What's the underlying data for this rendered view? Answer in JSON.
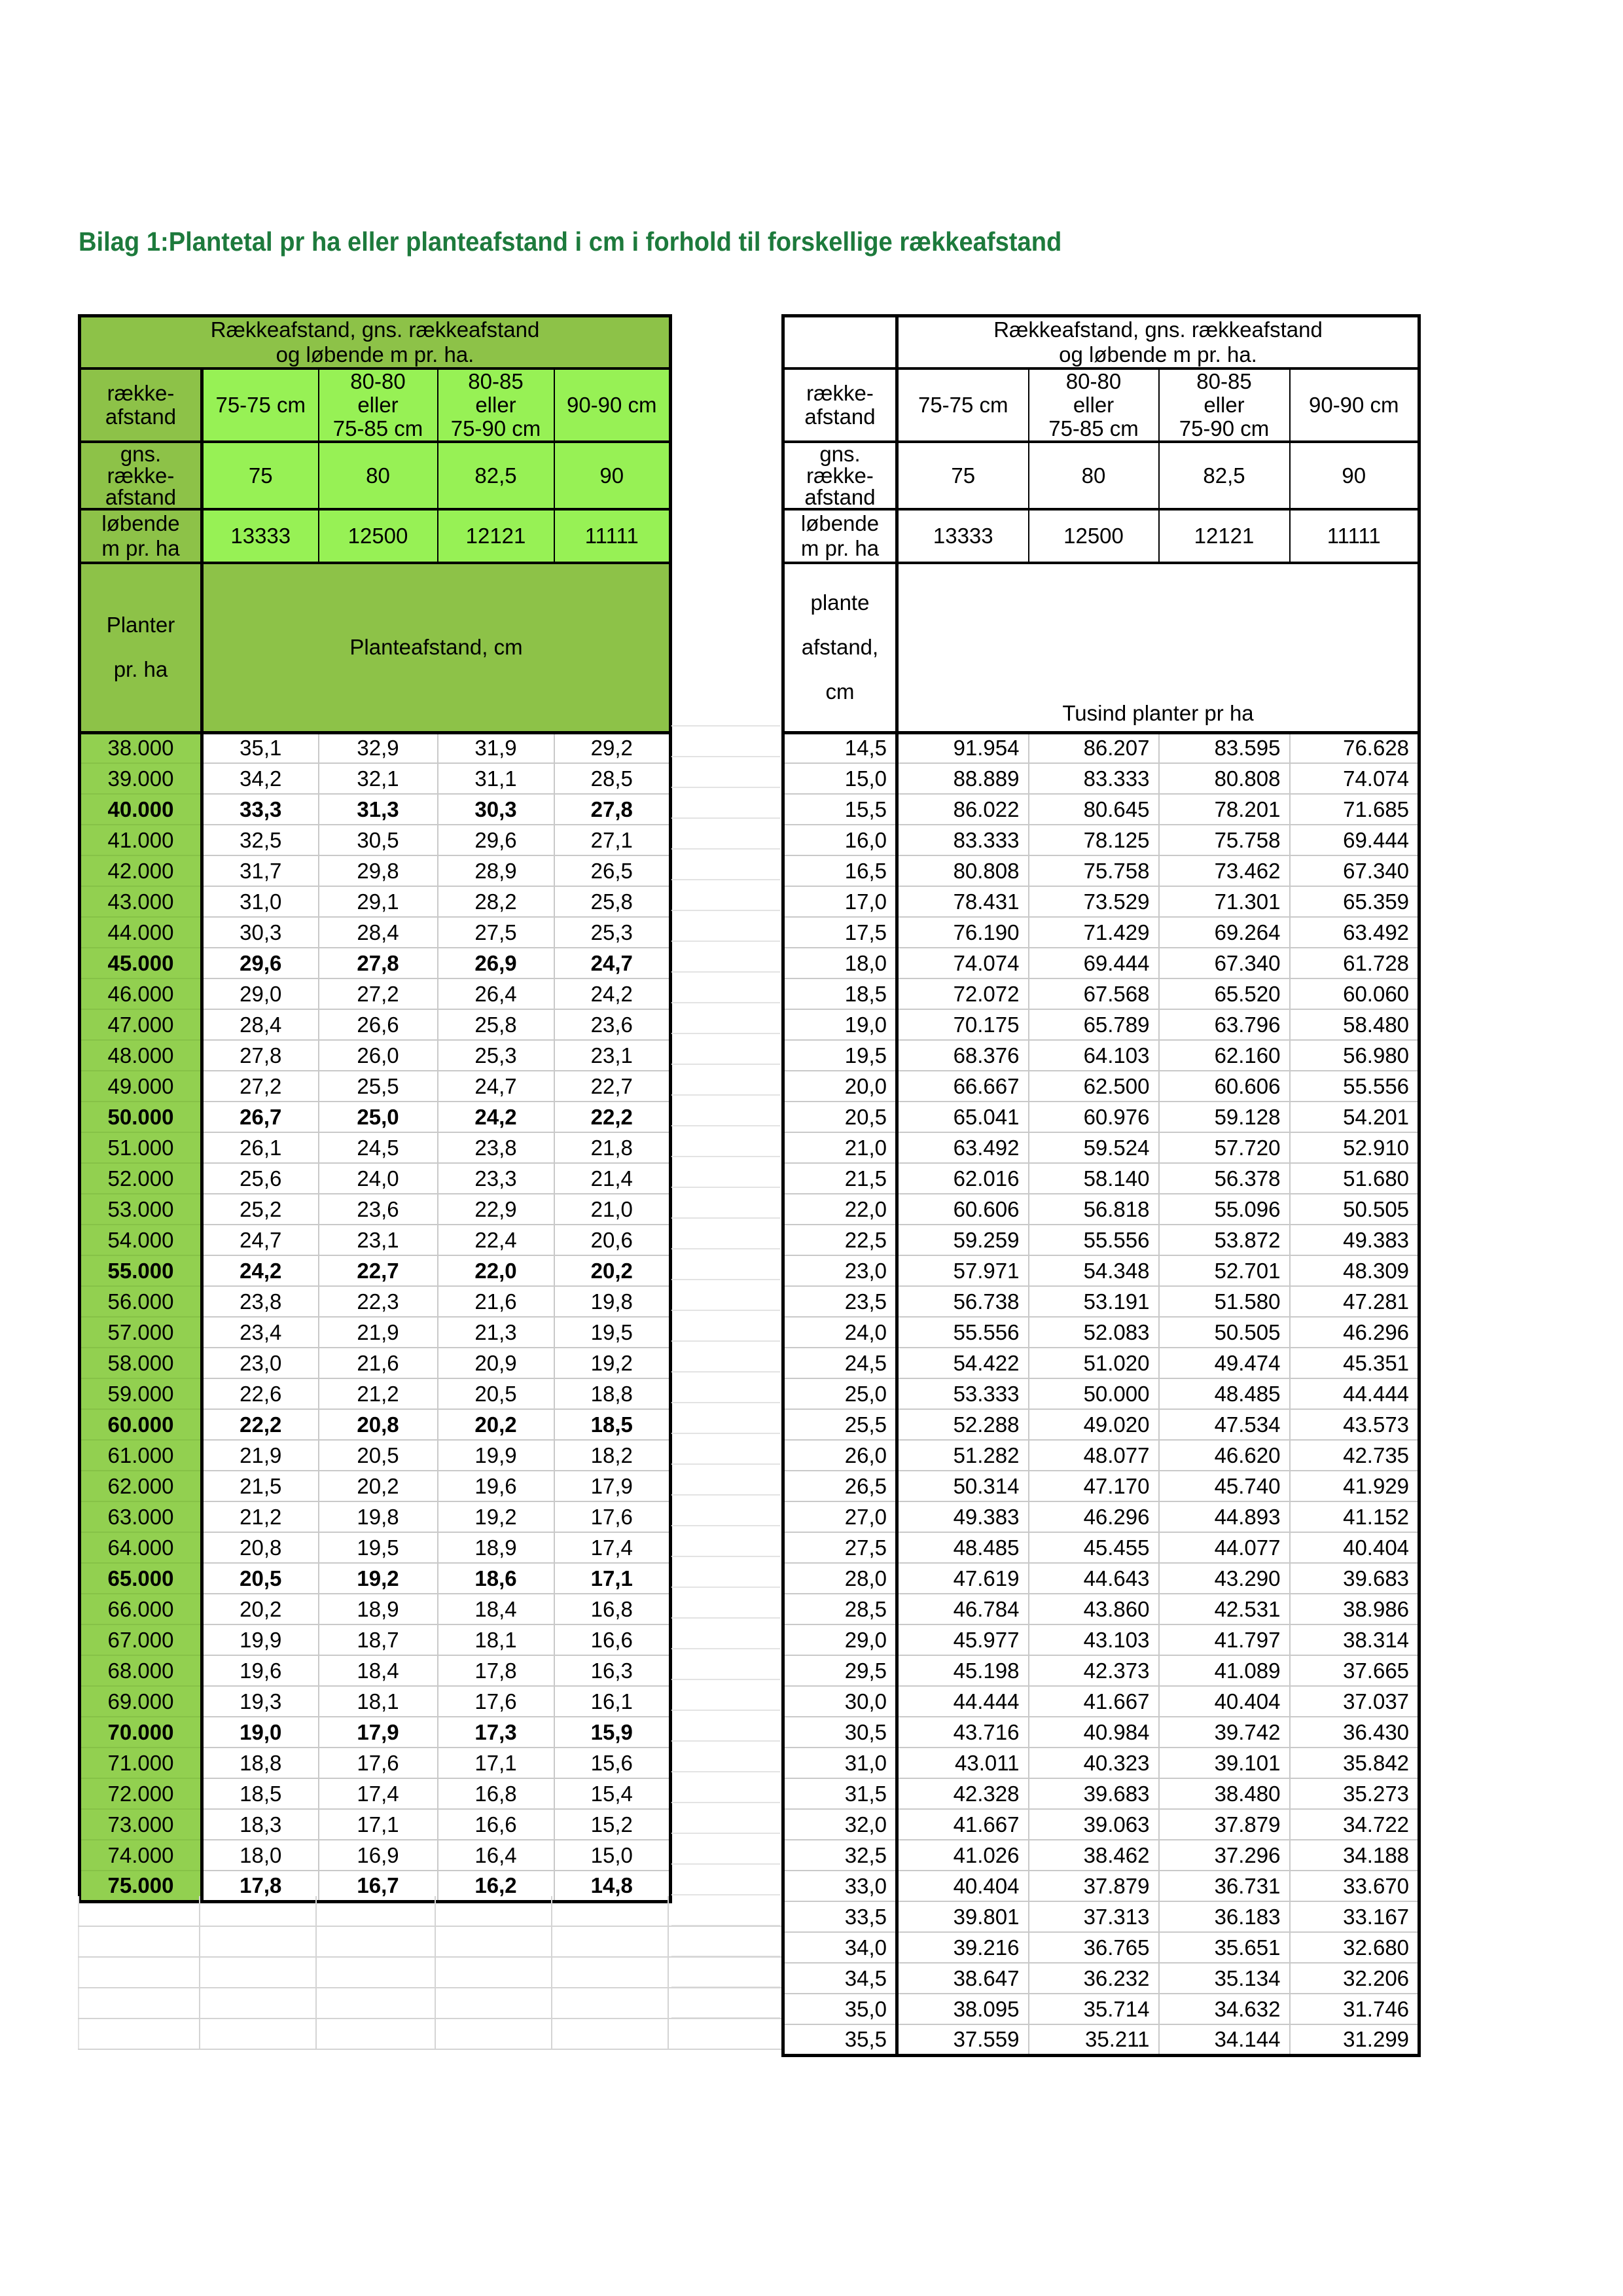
{
  "title": "Bilag 1:Plantetal pr ha eller planteafstand i cm i forhold til forskellige rækkeafstand",
  "colors": {
    "title_green": "#1d7a3c",
    "header_band_green": "#8dc248",
    "header_light_green": "#97f155",
    "first_column_green": "#92d050"
  },
  "shared_header": {
    "band_line1": "Rækkeafstand, gns. rækkeafstand",
    "band_line2": "og løbende m pr. ha.",
    "row_label_line1": "række-",
    "row_label_line2": "afstand",
    "col1": "75-75 cm",
    "col2_line1": "80-80",
    "col2_line2": "eller",
    "col2_line3": "75-85 cm",
    "col3_line1": "80-85",
    "col3_line2": "eller",
    "col3_line3": "75-90 cm",
    "col4": "90-90 cm",
    "gns_line1": "gns.",
    "gns_line2": "række-",
    "gns_line3": "afstand",
    "gns_values": [
      "75",
      "80",
      "82,5",
      "90"
    ],
    "lob_line1": "løbende",
    "lob_line2": "m pr. ha",
    "lob_values": [
      "13333",
      "12500",
      "12121",
      "11111"
    ]
  },
  "left_table": {
    "planter_line1": "Planter",
    "planter_line2": "pr. ha",
    "span_label": "Planteafstand, cm",
    "rows": [
      {
        "c0": "38.000",
        "v": [
          "35,1",
          "32,9",
          "31,9",
          "29,2"
        ],
        "bold": false
      },
      {
        "c0": "39.000",
        "v": [
          "34,2",
          "32,1",
          "31,1",
          "28,5"
        ],
        "bold": false
      },
      {
        "c0": "40.000",
        "v": [
          "33,3",
          "31,3",
          "30,3",
          "27,8"
        ],
        "bold": true
      },
      {
        "c0": "41.000",
        "v": [
          "32,5",
          "30,5",
          "29,6",
          "27,1"
        ],
        "bold": false
      },
      {
        "c0": "42.000",
        "v": [
          "31,7",
          "29,8",
          "28,9",
          "26,5"
        ],
        "bold": false
      },
      {
        "c0": "43.000",
        "v": [
          "31,0",
          "29,1",
          "28,2",
          "25,8"
        ],
        "bold": false
      },
      {
        "c0": "44.000",
        "v": [
          "30,3",
          "28,4",
          "27,5",
          "25,3"
        ],
        "bold": false
      },
      {
        "c0": "45.000",
        "v": [
          "29,6",
          "27,8",
          "26,9",
          "24,7"
        ],
        "bold": true
      },
      {
        "c0": "46.000",
        "v": [
          "29,0",
          "27,2",
          "26,4",
          "24,2"
        ],
        "bold": false
      },
      {
        "c0": "47.000",
        "v": [
          "28,4",
          "26,6",
          "25,8",
          "23,6"
        ],
        "bold": false
      },
      {
        "c0": "48.000",
        "v": [
          "27,8",
          "26,0",
          "25,3",
          "23,1"
        ],
        "bold": false
      },
      {
        "c0": "49.000",
        "v": [
          "27,2",
          "25,5",
          "24,7",
          "22,7"
        ],
        "bold": false
      },
      {
        "c0": "50.000",
        "v": [
          "26,7",
          "25,0",
          "24,2",
          "22,2"
        ],
        "bold": true
      },
      {
        "c0": "51.000",
        "v": [
          "26,1",
          "24,5",
          "23,8",
          "21,8"
        ],
        "bold": false
      },
      {
        "c0": "52.000",
        "v": [
          "25,6",
          "24,0",
          "23,3",
          "21,4"
        ],
        "bold": false
      },
      {
        "c0": "53.000",
        "v": [
          "25,2",
          "23,6",
          "22,9",
          "21,0"
        ],
        "bold": false
      },
      {
        "c0": "54.000",
        "v": [
          "24,7",
          "23,1",
          "22,4",
          "20,6"
        ],
        "bold": false
      },
      {
        "c0": "55.000",
        "v": [
          "24,2",
          "22,7",
          "22,0",
          "20,2"
        ],
        "bold": true
      },
      {
        "c0": "56.000",
        "v": [
          "23,8",
          "22,3",
          "21,6",
          "19,8"
        ],
        "bold": false
      },
      {
        "c0": "57.000",
        "v": [
          "23,4",
          "21,9",
          "21,3",
          "19,5"
        ],
        "bold": false
      },
      {
        "c0": "58.000",
        "v": [
          "23,0",
          "21,6",
          "20,9",
          "19,2"
        ],
        "bold": false
      },
      {
        "c0": "59.000",
        "v": [
          "22,6",
          "21,2",
          "20,5",
          "18,8"
        ],
        "bold": false
      },
      {
        "c0": "60.000",
        "v": [
          "22,2",
          "20,8",
          "20,2",
          "18,5"
        ],
        "bold": true
      },
      {
        "c0": "61.000",
        "v": [
          "21,9",
          "20,5",
          "19,9",
          "18,2"
        ],
        "bold": false
      },
      {
        "c0": "62.000",
        "v": [
          "21,5",
          "20,2",
          "19,6",
          "17,9"
        ],
        "bold": false
      },
      {
        "c0": "63.000",
        "v": [
          "21,2",
          "19,8",
          "19,2",
          "17,6"
        ],
        "bold": false
      },
      {
        "c0": "64.000",
        "v": [
          "20,8",
          "19,5",
          "18,9",
          "17,4"
        ],
        "bold": false
      },
      {
        "c0": "65.000",
        "v": [
          "20,5",
          "19,2",
          "18,6",
          "17,1"
        ],
        "bold": true
      },
      {
        "c0": "66.000",
        "v": [
          "20,2",
          "18,9",
          "18,4",
          "16,8"
        ],
        "bold": false
      },
      {
        "c0": "67.000",
        "v": [
          "19,9",
          "18,7",
          "18,1",
          "16,6"
        ],
        "bold": false
      },
      {
        "c0": "68.000",
        "v": [
          "19,6",
          "18,4",
          "17,8",
          "16,3"
        ],
        "bold": false
      },
      {
        "c0": "69.000",
        "v": [
          "19,3",
          "18,1",
          "17,6",
          "16,1"
        ],
        "bold": false
      },
      {
        "c0": "70.000",
        "v": [
          "19,0",
          "17,9",
          "17,3",
          "15,9"
        ],
        "bold": true
      },
      {
        "c0": "71.000",
        "v": [
          "18,8",
          "17,6",
          "17,1",
          "15,6"
        ],
        "bold": false
      },
      {
        "c0": "72.000",
        "v": [
          "18,5",
          "17,4",
          "16,8",
          "15,4"
        ],
        "bold": false
      },
      {
        "c0": "73.000",
        "v": [
          "18,3",
          "17,1",
          "16,6",
          "15,2"
        ],
        "bold": false
      },
      {
        "c0": "74.000",
        "v": [
          "18,0",
          "16,9",
          "16,4",
          "15,0"
        ],
        "bold": false
      },
      {
        "c0": "75.000",
        "v": [
          "17,8",
          "16,7",
          "16,2",
          "14,8"
        ],
        "bold": true
      }
    ]
  },
  "right_table": {
    "afstand_line1": "plante",
    "afstand_line2": "afstand,",
    "afstand_line3": "cm",
    "span_label": "Tusind planter pr ha",
    "rows": [
      {
        "c0": "14,5",
        "v": [
          "91.954",
          "86.207",
          "83.595",
          "76.628"
        ]
      },
      {
        "c0": "15,0",
        "v": [
          "88.889",
          "83.333",
          "80.808",
          "74.074"
        ]
      },
      {
        "c0": "15,5",
        "v": [
          "86.022",
          "80.645",
          "78.201",
          "71.685"
        ]
      },
      {
        "c0": "16,0",
        "v": [
          "83.333",
          "78.125",
          "75.758",
          "69.444"
        ]
      },
      {
        "c0": "16,5",
        "v": [
          "80.808",
          "75.758",
          "73.462",
          "67.340"
        ]
      },
      {
        "c0": "17,0",
        "v": [
          "78.431",
          "73.529",
          "71.301",
          "65.359"
        ]
      },
      {
        "c0": "17,5",
        "v": [
          "76.190",
          "71.429",
          "69.264",
          "63.492"
        ]
      },
      {
        "c0": "18,0",
        "v": [
          "74.074",
          "69.444",
          "67.340",
          "61.728"
        ]
      },
      {
        "c0": "18,5",
        "v": [
          "72.072",
          "67.568",
          "65.520",
          "60.060"
        ]
      },
      {
        "c0": "19,0",
        "v": [
          "70.175",
          "65.789",
          "63.796",
          "58.480"
        ]
      },
      {
        "c0": "19,5",
        "v": [
          "68.376",
          "64.103",
          "62.160",
          "56.980"
        ]
      },
      {
        "c0": "20,0",
        "v": [
          "66.667",
          "62.500",
          "60.606",
          "55.556"
        ]
      },
      {
        "c0": "20,5",
        "v": [
          "65.041",
          "60.976",
          "59.128",
          "54.201"
        ]
      },
      {
        "c0": "21,0",
        "v": [
          "63.492",
          "59.524",
          "57.720",
          "52.910"
        ]
      },
      {
        "c0": "21,5",
        "v": [
          "62.016",
          "58.140",
          "56.378",
          "51.680"
        ]
      },
      {
        "c0": "22,0",
        "v": [
          "60.606",
          "56.818",
          "55.096",
          "50.505"
        ]
      },
      {
        "c0": "22,5",
        "v": [
          "59.259",
          "55.556",
          "53.872",
          "49.383"
        ]
      },
      {
        "c0": "23,0",
        "v": [
          "57.971",
          "54.348",
          "52.701",
          "48.309"
        ]
      },
      {
        "c0": "23,5",
        "v": [
          "56.738",
          "53.191",
          "51.580",
          "47.281"
        ]
      },
      {
        "c0": "24,0",
        "v": [
          "55.556",
          "52.083",
          "50.505",
          "46.296"
        ]
      },
      {
        "c0": "24,5",
        "v": [
          "54.422",
          "51.020",
          "49.474",
          "45.351"
        ]
      },
      {
        "c0": "25,0",
        "v": [
          "53.333",
          "50.000",
          "48.485",
          "44.444"
        ]
      },
      {
        "c0": "25,5",
        "v": [
          "52.288",
          "49.020",
          "47.534",
          "43.573"
        ]
      },
      {
        "c0": "26,0",
        "v": [
          "51.282",
          "48.077",
          "46.620",
          "42.735"
        ]
      },
      {
        "c0": "26,5",
        "v": [
          "50.314",
          "47.170",
          "45.740",
          "41.929"
        ]
      },
      {
        "c0": "27,0",
        "v": [
          "49.383",
          "46.296",
          "44.893",
          "41.152"
        ]
      },
      {
        "c0": "27,5",
        "v": [
          "48.485",
          "45.455",
          "44.077",
          "40.404"
        ]
      },
      {
        "c0": "28,0",
        "v": [
          "47.619",
          "44.643",
          "43.290",
          "39.683"
        ]
      },
      {
        "c0": "28,5",
        "v": [
          "46.784",
          "43.860",
          "42.531",
          "38.986"
        ]
      },
      {
        "c0": "29,0",
        "v": [
          "45.977",
          "43.103",
          "41.797",
          "38.314"
        ]
      },
      {
        "c0": "29,5",
        "v": [
          "45.198",
          "42.373",
          "41.089",
          "37.665"
        ]
      },
      {
        "c0": "30,0",
        "v": [
          "44.444",
          "41.667",
          "40.404",
          "37.037"
        ]
      },
      {
        "c0": "30,5",
        "v": [
          "43.716",
          "40.984",
          "39.742",
          "36.430"
        ]
      },
      {
        "c0": "31,0",
        "v": [
          "43.011",
          "40.323",
          "39.101",
          "35.842"
        ]
      },
      {
        "c0": "31,5",
        "v": [
          "42.328",
          "39.683",
          "38.480",
          "35.273"
        ]
      },
      {
        "c0": "32,0",
        "v": [
          "41.667",
          "39.063",
          "37.879",
          "34.722"
        ]
      },
      {
        "c0": "32,5",
        "v": [
          "41.026",
          "38.462",
          "37.296",
          "34.188"
        ]
      },
      {
        "c0": "33,0",
        "v": [
          "40.404",
          "37.879",
          "36.731",
          "33.670"
        ]
      },
      {
        "c0": "33,5",
        "v": [
          "39.801",
          "37.313",
          "36.183",
          "33.167"
        ]
      },
      {
        "c0": "34,0",
        "v": [
          "39.216",
          "36.765",
          "35.651",
          "32.680"
        ]
      },
      {
        "c0": "34,5",
        "v": [
          "38.647",
          "36.232",
          "35.134",
          "32.206"
        ]
      },
      {
        "c0": "35,0",
        "v": [
          "38.095",
          "35.714",
          "34.632",
          "31.746"
        ]
      },
      {
        "c0": "35,5",
        "v": [
          "37.559",
          "35.211",
          "34.144",
          "31.299"
        ]
      }
    ]
  }
}
